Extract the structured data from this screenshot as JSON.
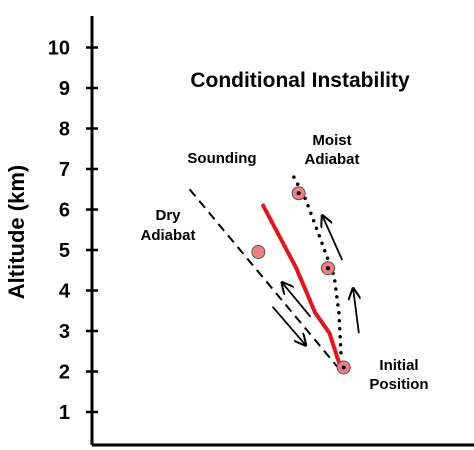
{
  "diagram": {
    "title": "Conditional Instability",
    "y_axis": {
      "label": "Altitude (km)",
      "min": 0,
      "max": 10,
      "ticks": [
        "1",
        "2",
        "3",
        "4",
        "5",
        "6",
        "7",
        "8",
        "9",
        "10"
      ]
    },
    "labels": {
      "sounding": "Sounding",
      "dry_line1": "Dry",
      "dry_line2": "Adiabat",
      "moist_line1": "Moist",
      "moist_line2": "Adiabat",
      "initial_line1": "Initial",
      "initial_line2": "Position"
    },
    "colors": {
      "sounding_line": "#e8141c",
      "parcel_fill": "#f08080",
      "axis": "#000000"
    },
    "curves": {
      "sounding": [
        [
          0.555,
          6.1
        ],
        [
          0.625,
          4.55
        ],
        [
          0.665,
          3.45
        ],
        [
          0.695,
          2.95
        ],
        [
          0.72,
          2.05
        ]
      ],
      "dry_adiabat": [
        [
          0.4,
          6.5
        ],
        [
          0.72,
          2.0
        ]
      ],
      "moist_adiabat": [
        [
          0.62,
          6.8
        ],
        [
          0.645,
          6.25
        ],
        [
          0.68,
          5.15
        ],
        [
          0.705,
          4.35
        ],
        [
          0.715,
          3.45
        ],
        [
          0.72,
          2.3
        ]
      ]
    },
    "parcels": [
      {
        "id": "initial",
        "x": 0.725,
        "alt": 2.1,
        "style": "moist"
      },
      {
        "id": "moist-mid",
        "x": 0.692,
        "alt": 4.55,
        "style": "moist"
      },
      {
        "id": "moist-top",
        "x": 0.63,
        "alt": 6.4,
        "style": "moist"
      },
      {
        "id": "dry",
        "x": 0.545,
        "alt": 4.95,
        "style": "dry"
      }
    ],
    "arrows": [
      {
        "id": "dry-down",
        "from": [
          0.575,
          3.6
        ],
        "to": [
          0.645,
          2.65
        ]
      },
      {
        "id": "dry-up",
        "from": [
          0.655,
          3.35
        ],
        "to": [
          0.595,
          4.2
        ]
      },
      {
        "id": "moist-up-lo",
        "from": [
          0.757,
          2.95
        ],
        "to": [
          0.745,
          4.05
        ]
      },
      {
        "id": "moist-up-hi",
        "from": [
          0.722,
          4.75
        ],
        "to": [
          0.68,
          5.85
        ]
      }
    ]
  }
}
